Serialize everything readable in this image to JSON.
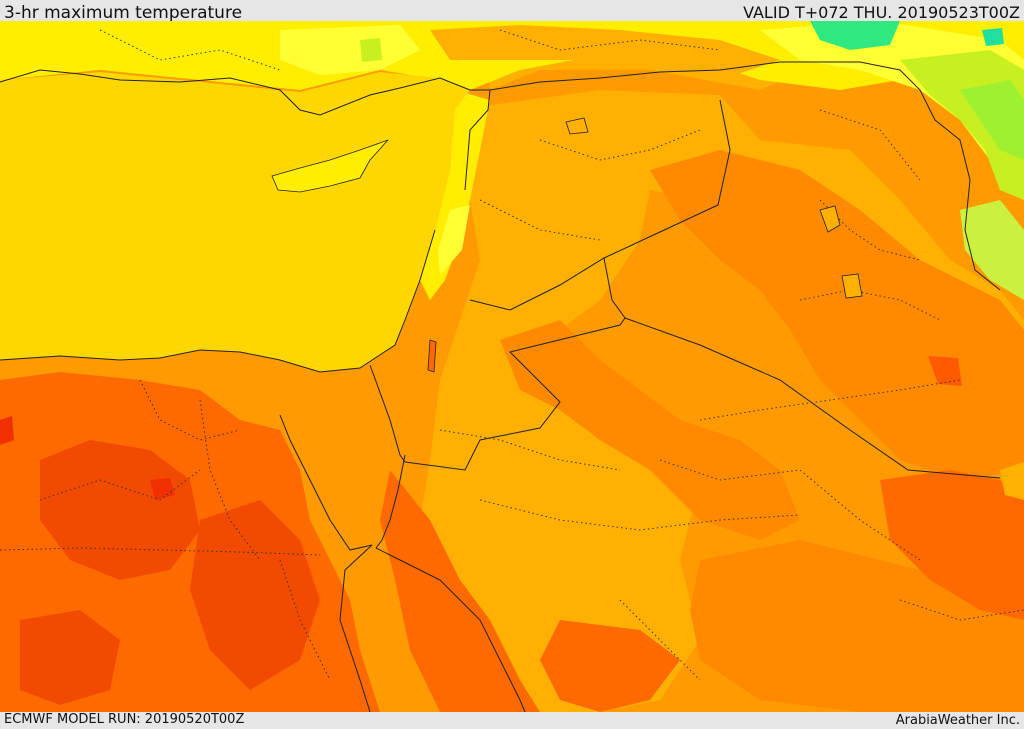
{
  "header": {
    "title": "3-hr maximum temperature",
    "valid_text": "VALID T+072 THU. 20190523T00Z"
  },
  "footer": {
    "model_run": "ECMWF MODEL RUN: 20190520T00Z",
    "credit": "ArabiaWeather Inc."
  },
  "map": {
    "variable": "3-hr maximum temperature",
    "colors": {
      "sea": "#ffd700",
      "yellow_land": "#ffee00",
      "light_orange": "#ffb000",
      "orange": "#ff9a00",
      "dark_orange": "#ff7a00",
      "red_orange": "#ff5a00",
      "red": "#f03000",
      "pale_yellow": "#ffff33",
      "green": "#9ef030",
      "teal": "#20e890"
    },
    "legend": "none"
  }
}
